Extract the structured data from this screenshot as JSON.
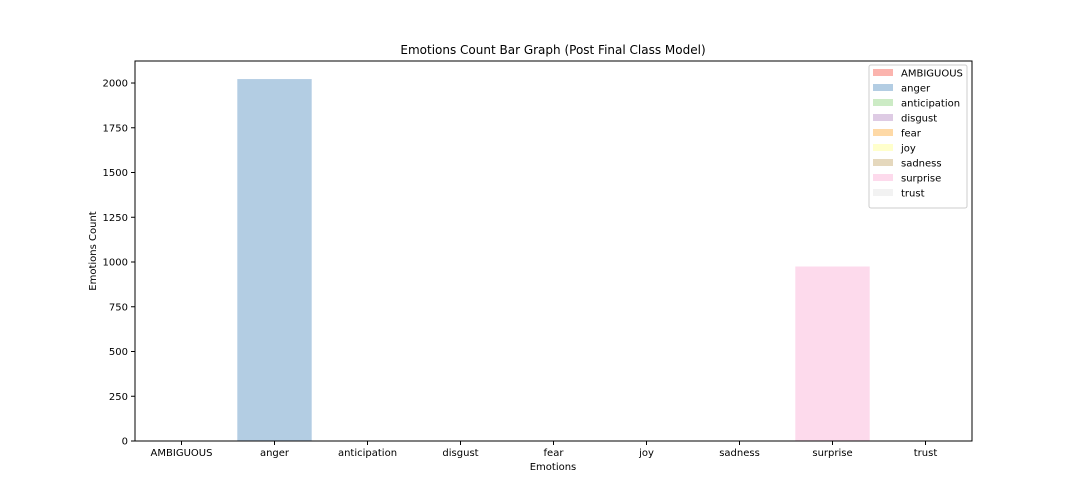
{
  "chart_data": {
    "type": "bar",
    "title": "Emotions Count Bar Graph (Post Final Class Model)",
    "xlabel": "Emotions",
    "ylabel": "Emotions Count",
    "categories": [
      "AMBIGUOUS",
      "anger",
      "anticipation",
      "disgust",
      "fear",
      "joy",
      "sadness",
      "surprise",
      "trust"
    ],
    "values": [
      0,
      2022,
      0,
      0,
      0,
      0,
      0,
      975,
      0
    ],
    "colors": [
      "#fbb4ae",
      "#b3cde3",
      "#ccebc5",
      "#decbe4",
      "#fed9a6",
      "#ffffcc",
      "#e5d8bd",
      "#fddaec",
      "#f2f2f2"
    ],
    "ylim": [
      0,
      2123
    ],
    "yticks": [
      0,
      250,
      500,
      750,
      1000,
      1250,
      1500,
      1750,
      2000
    ],
    "grid": false,
    "legend_position": "top-right"
  }
}
